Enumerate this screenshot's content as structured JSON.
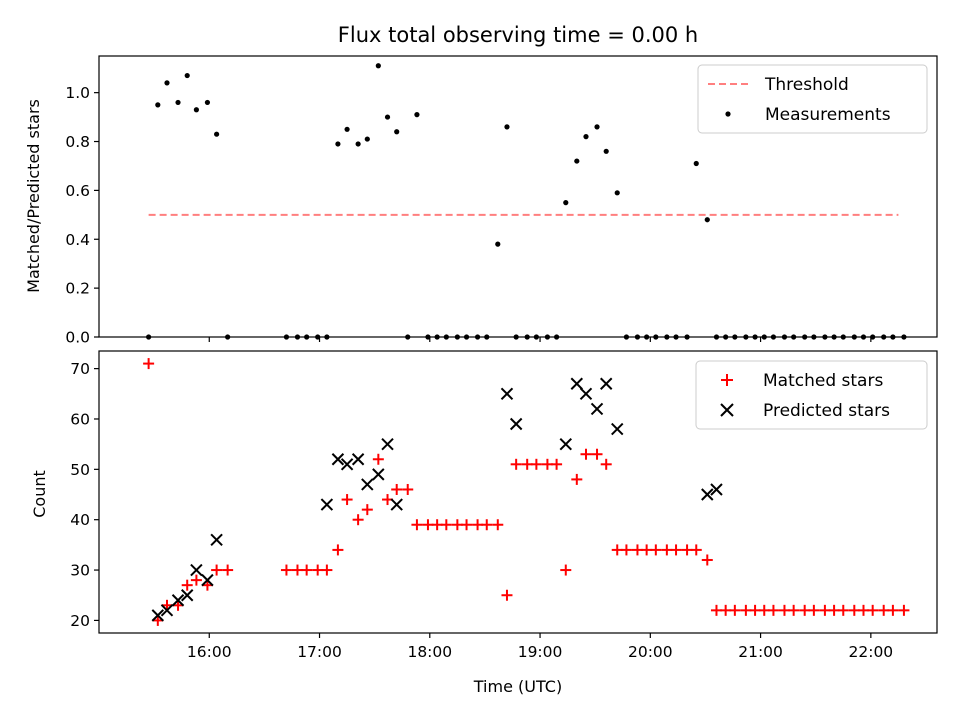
{
  "chart_data": [
    {
      "type": "scatter",
      "title": "Flux total observing time = 0.00 h",
      "xlabel": "",
      "ylabel": "Matched/Predicted stars",
      "ylim": [
        0,
        1.15
      ],
      "xlim_hours_utc": [
        15.0,
        22.6
      ],
      "yticks": [
        "0.0",
        "0.2",
        "0.4",
        "0.6",
        "0.8",
        "1.0"
      ],
      "ytick_values": [
        0,
        0.2,
        0.4,
        0.6,
        0.8,
        1.0
      ],
      "grid": false,
      "legend_position": "top-right",
      "threshold": {
        "name": "Threshold",
        "color": "#ff7f7f",
        "style": "dashed",
        "value": 0.5,
        "x_range": [
          "15:27",
          "22:15"
        ]
      },
      "series": [
        {
          "name": "Measurements",
          "color": "#000000",
          "marker": "dot",
          "x": [
            "15:27",
            "15:32",
            "15:37",
            "15:43",
            "15:48",
            "15:53",
            "15:59",
            "16:04",
            "16:10",
            "16:42",
            "16:48",
            "16:53",
            "16:59",
            "17:04",
            "17:10",
            "17:15",
            "17:21",
            "17:26",
            "17:32",
            "17:37",
            "17:42",
            "17:48",
            "17:53",
            "17:59",
            "18:04",
            "18:09",
            "18:15",
            "18:20",
            "18:26",
            "18:31",
            "18:37",
            "18:42",
            "18:47",
            "18:53",
            "18:58",
            "19:04",
            "19:09",
            "19:14",
            "19:20",
            "19:25",
            "19:31",
            "19:36",
            "19:42",
            "19:47",
            "19:53",
            "19:58",
            "20:03",
            "20:09",
            "20:14",
            "20:20",
            "20:25",
            "20:31",
            "20:36",
            "20:41",
            "20:46",
            "20:52",
            "20:57",
            "21:02",
            "21:07",
            "21:13",
            "21:18",
            "21:24",
            "21:29",
            "21:35",
            "21:40",
            "21:45",
            "21:51",
            "21:56",
            "22:01",
            "22:07",
            "22:12",
            "22:18"
          ],
          "y": [
            0.0,
            0.95,
            1.04,
            0.96,
            1.07,
            0.93,
            0.96,
            0.83,
            0.0,
            0.0,
            0.0,
            0.0,
            0.0,
            0.0,
            0.79,
            0.85,
            0.79,
            0.81,
            1.11,
            0.9,
            0.84,
            0.0,
            0.91,
            0.0,
            0.0,
            0.0,
            0.0,
            0.0,
            0.0,
            0.0,
            0.38,
            0.86,
            0.0,
            0.0,
            0.0,
            0.0,
            0.0,
            0.55,
            0.72,
            0.82,
            0.86,
            0.76,
            0.59,
            0.0,
            0.0,
            0.0,
            0.0,
            0.0,
            0.0,
            0.0,
            0.71,
            0.48,
            0.0,
            0.0,
            0.0,
            0.0,
            0.0,
            0.0,
            0.0,
            0.0,
            0.0,
            0.0,
            0.0,
            0.0,
            0.0,
            0.0,
            0.0,
            0.0,
            0.0,
            0.0,
            0.0,
            0.0
          ]
        }
      ]
    },
    {
      "type": "scatter",
      "title": "",
      "xlabel": "Time (UTC)",
      "ylabel": "Count",
      "ylim": [
        17.5,
        73.5
      ],
      "xlim_hours_utc": [
        15.0,
        22.6
      ],
      "xticks": [
        "16:00",
        "17:00",
        "18:00",
        "19:00",
        "20:00",
        "21:00",
        "22:00"
      ],
      "yticks": [
        "20",
        "30",
        "40",
        "50",
        "60",
        "70"
      ],
      "ytick_values": [
        20,
        30,
        40,
        50,
        60,
        70
      ],
      "grid": false,
      "legend_position": "top-right",
      "series": [
        {
          "name": "Matched stars",
          "color": "#ff0000",
          "marker": "plus",
          "x": [
            "15:27",
            "15:32",
            "15:37",
            "15:43",
            "15:48",
            "15:53",
            "15:59",
            "16:04",
            "16:10",
            "16:42",
            "16:48",
            "16:53",
            "16:59",
            "17:04",
            "17:10",
            "17:15",
            "17:21",
            "17:26",
            "17:32",
            "17:37",
            "17:42",
            "17:48",
            "17:53",
            "17:59",
            "18:04",
            "18:09",
            "18:15",
            "18:20",
            "18:26",
            "18:31",
            "18:37",
            "18:42",
            "18:47",
            "18:53",
            "18:58",
            "19:04",
            "19:09",
            "19:14",
            "19:20",
            "19:25",
            "19:31",
            "19:36",
            "19:42",
            "19:47",
            "19:53",
            "19:58",
            "20:03",
            "20:09",
            "20:14",
            "20:20",
            "20:25",
            "20:31",
            "20:36",
            "20:41",
            "20:46",
            "20:52",
            "20:57",
            "21:02",
            "21:07",
            "21:13",
            "21:18",
            "21:24",
            "21:29",
            "21:35",
            "21:40",
            "21:45",
            "21:51",
            "21:56",
            "22:01",
            "22:07",
            "22:12",
            "22:18"
          ],
          "y": [
            71,
            20,
            23,
            23,
            27,
            28,
            27,
            30,
            30,
            30,
            30,
            30,
            30,
            30,
            34,
            44,
            40,
            42,
            52,
            44,
            46,
            46,
            39,
            39,
            39,
            39,
            39,
            39,
            39,
            39,
            39,
            25,
            51,
            51,
            51,
            51,
            51,
            30,
            48,
            53,
            53,
            51,
            34,
            34,
            34,
            34,
            34,
            34,
            34,
            34,
            34,
            32,
            22,
            22,
            22,
            22,
            22,
            22,
            22,
            22,
            22,
            22,
            22,
            22,
            22,
            22,
            22,
            22,
            22,
            22,
            22,
            22
          ]
        },
        {
          "name": "Predicted stars",
          "color": "#000000",
          "marker": "x",
          "x": [
            "15:32",
            "15:37",
            "15:43",
            "15:48",
            "15:53",
            "15:59",
            "16:04",
            "17:04",
            "17:10",
            "17:15",
            "17:21",
            "17:26",
            "17:32",
            "17:37",
            "17:42",
            "18:42",
            "18:47",
            "19:14",
            "19:20",
            "19:25",
            "19:31",
            "19:36",
            "19:42",
            "20:31",
            "20:36"
          ],
          "y": [
            21,
            22,
            24,
            25,
            30,
            28,
            36,
            43,
            52,
            51,
            52,
            47,
            49,
            55,
            43,
            65,
            59,
            55,
            67,
            65,
            62,
            67,
            58,
            45,
            46
          ]
        }
      ]
    }
  ]
}
